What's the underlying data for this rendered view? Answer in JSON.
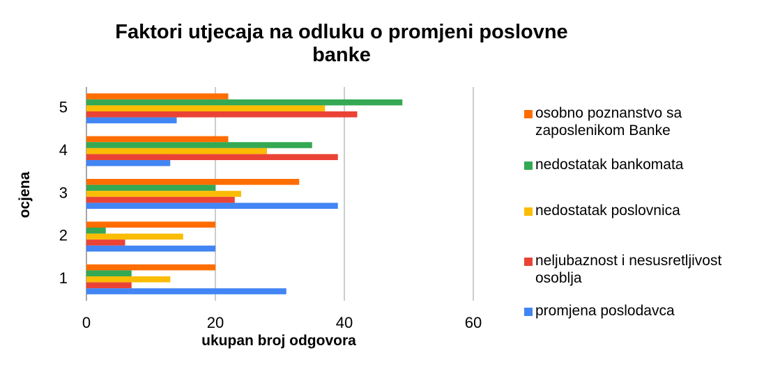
{
  "chart_data": {
    "type": "hbar",
    "title": "Faktori utjecaja na odluku o promjeni poslovne banke",
    "xlabel": "ukupan broj odgovora",
    "ylabel": "ocjena",
    "categories": [
      "1",
      "2",
      "3",
      "4",
      "5"
    ],
    "series": [
      {
        "name": "osobno poznanstvo sa zaposlenikom Banke",
        "color": "#ff6d01",
        "values": [
          20,
          20,
          33,
          22,
          22
        ]
      },
      {
        "name": "nedostatak bankomata",
        "color": "#34a853",
        "values": [
          7,
          3,
          20,
          35,
          49
        ]
      },
      {
        "name": "nedostatak poslovnica",
        "color": "#fbbc04",
        "values": [
          13,
          15,
          24,
          28,
          37
        ]
      },
      {
        "name": "neljubaznost i nesusretljivost osoblja",
        "color": "#ea4335",
        "values": [
          7,
          6,
          23,
          39,
          42
        ]
      },
      {
        "name": "promjena poslodavca",
        "color": "#4285f4",
        "values": [
          31,
          20,
          39,
          13,
          14
        ]
      }
    ],
    "xlim": [
      0,
      60
    ],
    "xticks": [
      0,
      20,
      40,
      60
    ],
    "grid": true,
    "legend": "right"
  }
}
